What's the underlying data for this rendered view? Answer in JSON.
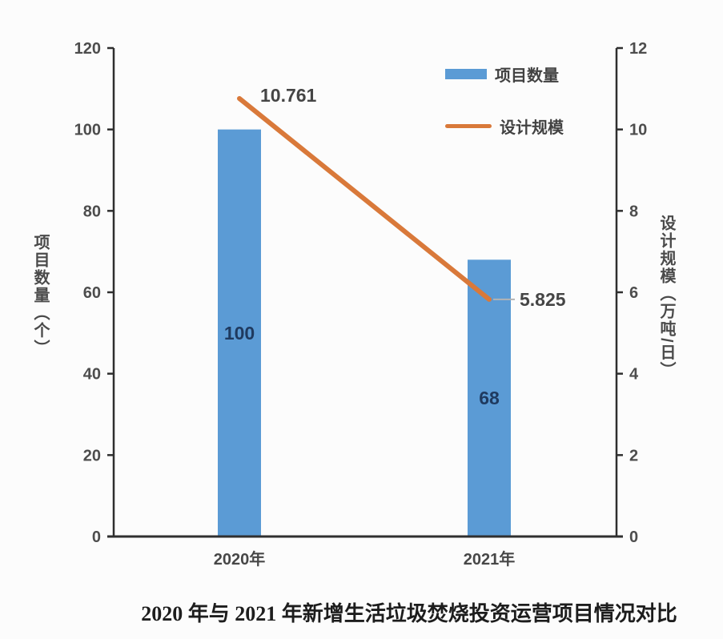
{
  "figure": {
    "background": "#fcfcfc"
  },
  "chart_data": {
    "type": "combo",
    "title": "2020 年与 2021 年新增生活垃圾焚烧投资运营项目情况对比",
    "categories": [
      "2020年",
      "2021年"
    ],
    "series": [
      {
        "name": "项目数量",
        "kind": "bar",
        "axis": "left",
        "values": [
          100,
          68
        ],
        "value_labels": [
          "100",
          "68"
        ],
        "color": "#5b9bd5"
      },
      {
        "name": "设计规模",
        "kind": "line",
        "axis": "right",
        "values": [
          10.761,
          5.825
        ],
        "value_labels": [
          "10.761",
          "5.825"
        ],
        "color": "#d9793a"
      }
    ],
    "left_axis": {
      "title": "项目数量（个）",
      "min": 0,
      "max": 120,
      "ticks": [
        0,
        20,
        40,
        60,
        80,
        100,
        120
      ]
    },
    "right_axis": {
      "title": "设计规模（万吨/日）",
      "min": 0,
      "max": 12,
      "ticks": [
        0,
        2,
        4,
        6,
        8,
        10,
        12
      ]
    },
    "grid": false,
    "legend_position": "top-right-inside",
    "colors": {
      "axis_line": "#2f2f2f",
      "tick_label": "#4d4d4d",
      "bar_value_label": "#1f3a5f",
      "line_value_label": "#454545",
      "leader_line": "#b3b3b3"
    }
  }
}
